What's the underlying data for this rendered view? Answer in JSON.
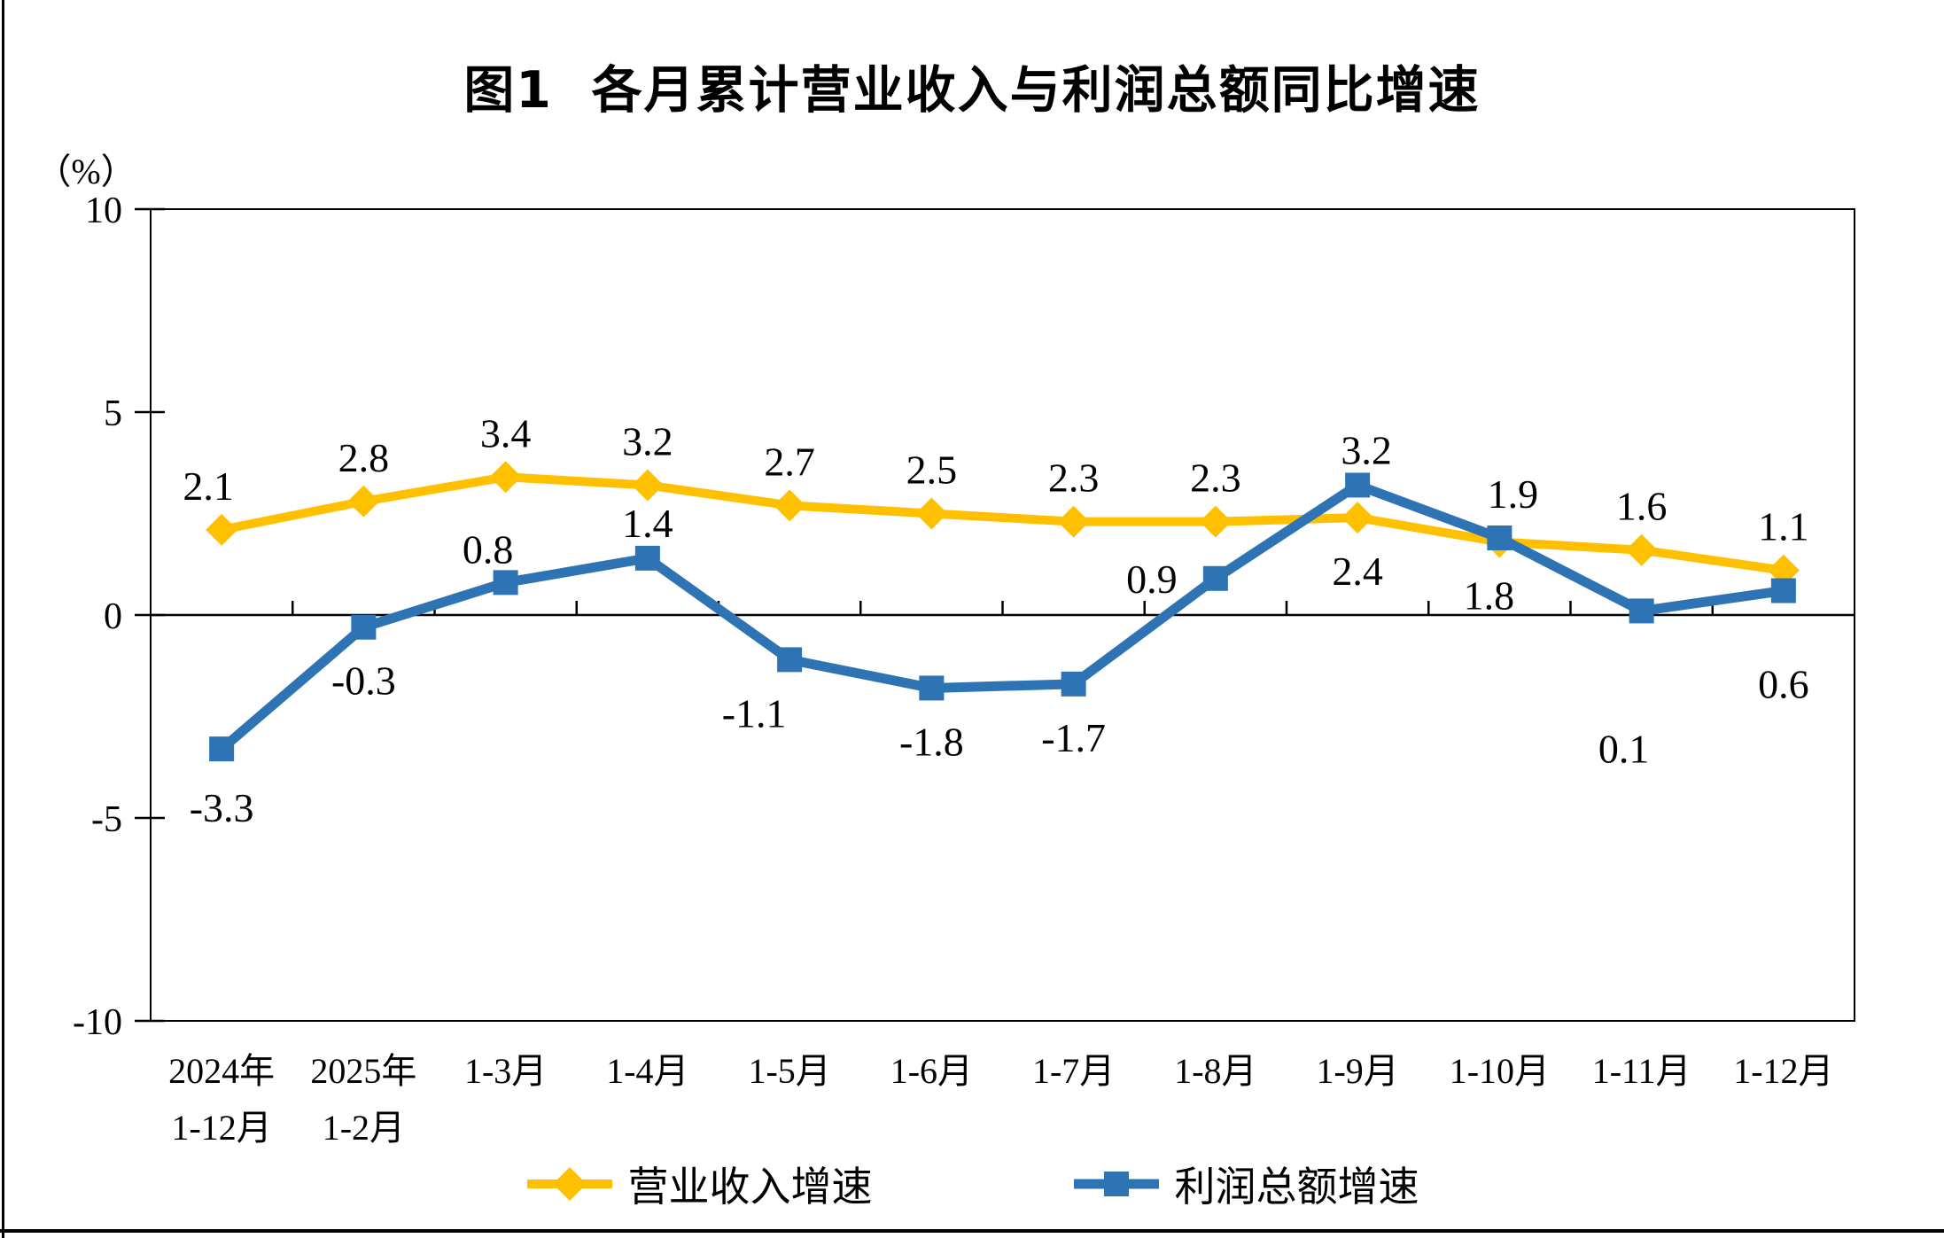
{
  "title": "图1  各月累计营业收入与利润总额同比增速",
  "chart_data": {
    "type": "line",
    "title": "图1 各月累计营业收入与利润总额同比增速",
    "ylabel": "（%）",
    "xlabel": "",
    "ylim": [
      -10,
      10
    ],
    "yticks": [
      10,
      5,
      0,
      -5,
      -10
    ],
    "grid": false,
    "legend_position": "bottom",
    "categories": [
      "2024年\n1-12月",
      "2025年\n1-2月",
      "1-3月",
      "1-4月",
      "1-5月",
      "1-6月",
      "1-7月",
      "1-8月",
      "1-9月",
      "1-10月",
      "1-11月",
      "1-12月"
    ],
    "series": [
      {
        "name": "营业收入增速",
        "color": "#FFC000",
        "marker": "diamond",
        "values": [
          2.1,
          2.8,
          3.4,
          3.2,
          2.7,
          2.5,
          2.3,
          2.3,
          2.4,
          1.8,
          1.6,
          1.1
        ],
        "label_side": [
          "above",
          "above",
          "above",
          "above",
          "above",
          "above",
          "above",
          "above",
          "below",
          "below",
          "above",
          "above"
        ],
        "label_dx": [
          -15,
          0,
          0,
          0,
          0,
          0,
          0,
          0,
          0,
          -12,
          0,
          0
        ],
        "label_dy": [
          0,
          0,
          0,
          0,
          0,
          0,
          0,
          0,
          0,
          0,
          0,
          0
        ]
      },
      {
        "name": "利润总额增速",
        "color": "#2E74B5",
        "marker": "square",
        "values": [
          -3.3,
          -0.3,
          0.8,
          1.4,
          -1.1,
          -1.8,
          -1.7,
          0.9,
          3.2,
          1.9,
          0.1,
          0.6
        ],
        "label_side": [
          "below",
          "below",
          "above",
          "above",
          "below",
          "below",
          "below",
          "left",
          "above",
          "above",
          "below",
          "below"
        ],
        "label_dx": [
          0,
          0,
          -20,
          0,
          -40,
          0,
          0,
          -72,
          10,
          15,
          -20,
          0
        ],
        "label_dy": [
          6,
          0,
          12,
          10,
          0,
          0,
          0,
          0,
          10,
          0,
          95,
          45
        ]
      }
    ]
  }
}
